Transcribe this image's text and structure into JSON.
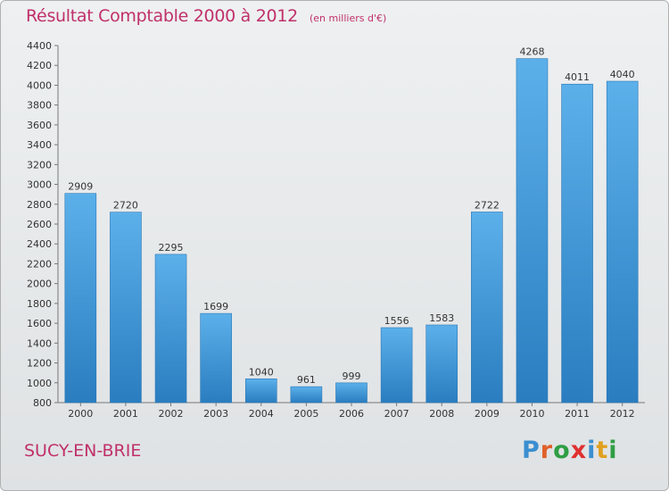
{
  "title": "Résultat Comptable 2000 à 2012",
  "subtitle": "(en milliers d'€)",
  "place": "SUCY-EN-BRIE",
  "logo": {
    "text": "Proxiti",
    "colors": [
      "#3a8fd0",
      "#e0602a",
      "#2f9e44",
      "#e03030",
      "#3a8fd0",
      "#e0a020",
      "#2f9e44"
    ]
  },
  "colors": {
    "bar": "#3d97dc",
    "bar_top": "#5cb0ea",
    "bar_bottom": "#2a7dbf",
    "title": "#c0306a"
  },
  "chart_data": {
    "type": "bar",
    "title": "Résultat Comptable 2000 à 2012",
    "subtitle": "(en milliers d'€)",
    "categories": [
      "2000",
      "2001",
      "2002",
      "2003",
      "2004",
      "2005",
      "2006",
      "2007",
      "2008",
      "2009",
      "2010",
      "2011",
      "2012"
    ],
    "values": [
      2909,
      2720,
      2295,
      1699,
      1040,
      961,
      999,
      1556,
      1583,
      2722,
      4268,
      4011,
      4040
    ],
    "ylim": [
      800,
      4400
    ],
    "yticks": [
      800,
      1000,
      1200,
      1400,
      1600,
      1800,
      2000,
      2200,
      2400,
      2600,
      2800,
      3000,
      3200,
      3400,
      3600,
      3800,
      4000,
      4200,
      4400
    ],
    "xlabel": "",
    "ylabel": "",
    "grid": false,
    "legend": "none"
  }
}
